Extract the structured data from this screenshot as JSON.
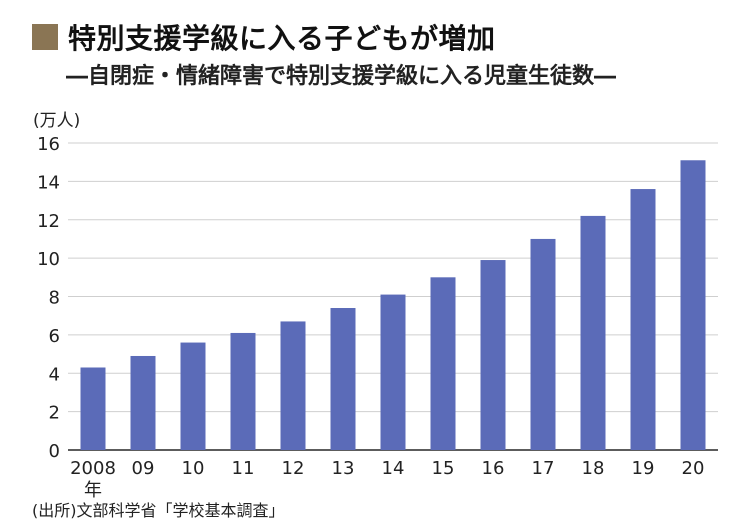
{
  "title": "特別支援学級に入る子どもが増加",
  "subtitle": "―自閉症・情緒障害で特別支援学級に入る児童生徒数―",
  "source": "(出所)文部科学省「学校基本調査」",
  "colors": {
    "bar": "#5b6bb8",
    "grid": "#cfcfcf",
    "axis": "#444444",
    "title_square": "#8a7554"
  },
  "chart_data": {
    "type": "bar",
    "title": "",
    "xlabel": "",
    "ylabel": "(万人)",
    "categories": [
      "2008",
      "09",
      "10",
      "11",
      "12",
      "13",
      "14",
      "15",
      "16",
      "17",
      "18",
      "19",
      "20"
    ],
    "category_unit": "年",
    "values": [
      4.3,
      4.9,
      5.6,
      6.1,
      6.7,
      7.4,
      8.1,
      9.0,
      9.9,
      11.0,
      12.2,
      13.6,
      15.1
    ],
    "ylim": [
      0,
      16
    ],
    "yticks": [
      0,
      2,
      4,
      6,
      8,
      10,
      12,
      14,
      16
    ],
    "grid": true
  }
}
